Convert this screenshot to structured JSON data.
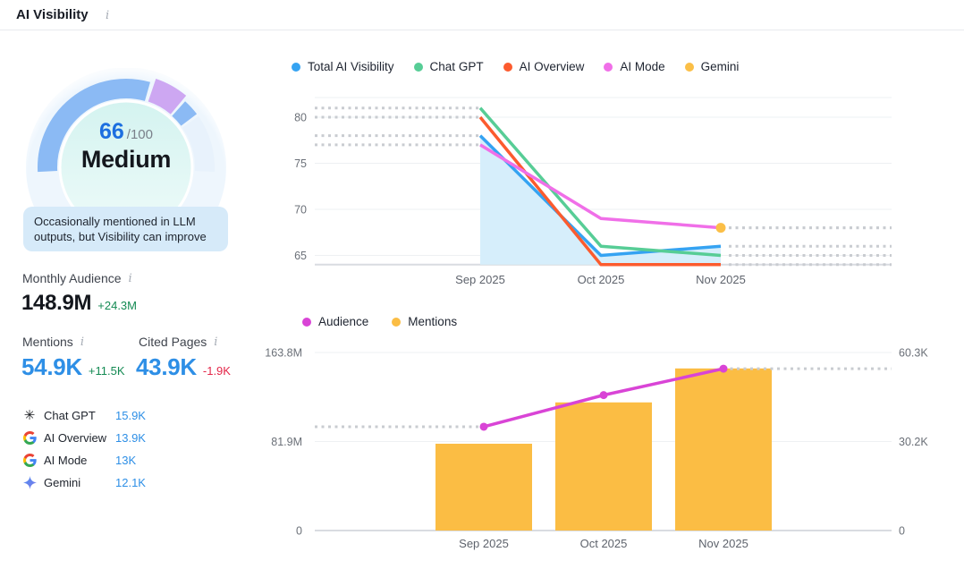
{
  "header": {
    "title": "AI Visibility"
  },
  "colors": {
    "accent_blue": "#2e8fe6",
    "score_blue": "#1d6fe0",
    "positive_green": "#148a53",
    "negative_red": "#e42649",
    "gauge_arc_blue": "#8bbaf4",
    "gauge_arc_purple": "#cda7f2",
    "gauge_arc_rest": "#e8f2fc",
    "tooltip_bg": "#d6eaf9"
  },
  "gauge": {
    "score": "66",
    "denominator": "/100",
    "rating": "Medium",
    "tooltip": "Occasionally mentioned in LLM outputs, but Visibility can improve"
  },
  "metrics": {
    "monthly_audience": {
      "label": "Monthly Audience",
      "value": "148.9M",
      "delta": "+24.3M"
    },
    "mentions": {
      "label": "Mentions",
      "value": "54.9K",
      "delta": "+11.5K"
    },
    "cited_pages": {
      "label": "Cited Pages",
      "value": "43.9K",
      "delta": "-1.9K"
    }
  },
  "platforms": [
    {
      "icon": "chatgpt-icon",
      "name": "Chat GPT",
      "value": "15.9K"
    },
    {
      "icon": "google-icon",
      "name": "AI Overview",
      "value": "13.9K"
    },
    {
      "icon": "google-icon",
      "name": "AI Mode",
      "value": "13K"
    },
    {
      "icon": "gemini-icon",
      "name": "Gemini",
      "value": "12.1K"
    }
  ],
  "chart_data": [
    {
      "type": "line",
      "title": "AI Visibility trend",
      "x": [
        "Sep 2025",
        "Oct 2025",
        "Nov 2025"
      ],
      "yticks": [
        80,
        75,
        70,
        65
      ],
      "ylim": [
        64,
        82
      ],
      "grid": true,
      "legend_position": "top",
      "series": [
        {
          "name": "Total AI Visibility",
          "color": "#35a3f2",
          "values": [
            78,
            65,
            66
          ],
          "area": true
        },
        {
          "name": "Chat GPT",
          "color": "#57cd96",
          "values": [
            81,
            66,
            65
          ]
        },
        {
          "name": "AI Overview",
          "color": "#fc5b2e",
          "values": [
            80,
            64,
            64
          ]
        },
        {
          "name": "AI Mode",
          "color": "#f06fe8",
          "values": [
            77,
            69,
            68
          ]
        },
        {
          "name": "Gemini",
          "color": "#fbbf47",
          "values": [
            null,
            null,
            68
          ],
          "marker": true
        }
      ],
      "area_color": "#d6eefb"
    },
    {
      "type": "bar+line",
      "title": "Audience and Mentions",
      "x": [
        "Sep 2025",
        "Oct 2025",
        "Nov 2025"
      ],
      "left_axis": {
        "ticks": [
          "163.8M",
          "81.9M",
          "0"
        ],
        "max_millions": 163.8,
        "label": "Audience"
      },
      "right_axis": {
        "ticks": [
          "60.3K",
          "30.2K",
          "0"
        ],
        "max_thousands": 60.3,
        "label": "Mentions"
      },
      "line_series": {
        "name": "Audience",
        "color": "#d944d6",
        "axis": "left",
        "values_millions": [
          95.5,
          124.6,
          148.9
        ]
      },
      "bar_series": {
        "name": "Mentions",
        "color": "#fbbd44",
        "axis": "right",
        "values_thousands": [
          29.4,
          43.4,
          54.9
        ]
      },
      "legend_position": "top",
      "grid": true
    }
  ]
}
